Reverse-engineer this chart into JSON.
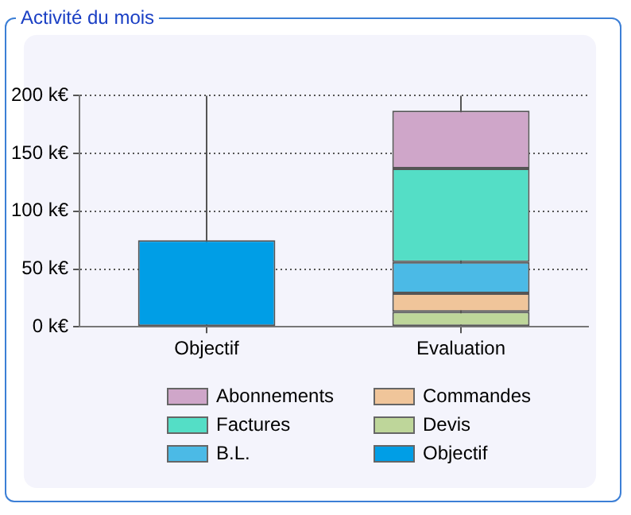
{
  "chart_data": {
    "type": "bar",
    "title": "Activité du mois",
    "categories": [
      "Objectif",
      "Evaluation"
    ],
    "stacked": true,
    "series": [
      {
        "name": "Devis",
        "color": "#bed69a",
        "values": [
          null,
          13
        ]
      },
      {
        "name": "Commandes",
        "color": "#f0c59a",
        "values": [
          null,
          16
        ]
      },
      {
        "name": "B.L.",
        "color": "#4bbae6",
        "values": [
          null,
          27
        ]
      },
      {
        "name": "Factures",
        "color": "#54dec6",
        "values": [
          null,
          81
        ]
      },
      {
        "name": "Abonnements",
        "color": "#cfa6c9",
        "values": [
          null,
          50
        ]
      },
      {
        "name": "Objectif",
        "color": "#009ee6",
        "values": [
          75,
          null
        ]
      }
    ],
    "ylim": [
      0,
      200
    ],
    "yticks": [
      {
        "value": 0,
        "label": "0 k€"
      },
      {
        "value": 50,
        "label": "50 k€"
      },
      {
        "value": 100,
        "label": "100 k€"
      },
      {
        "value": 150,
        "label": "150 k€"
      },
      {
        "value": 200,
        "label": "200 k€"
      }
    ],
    "grid": true,
    "legend": "bottom"
  }
}
